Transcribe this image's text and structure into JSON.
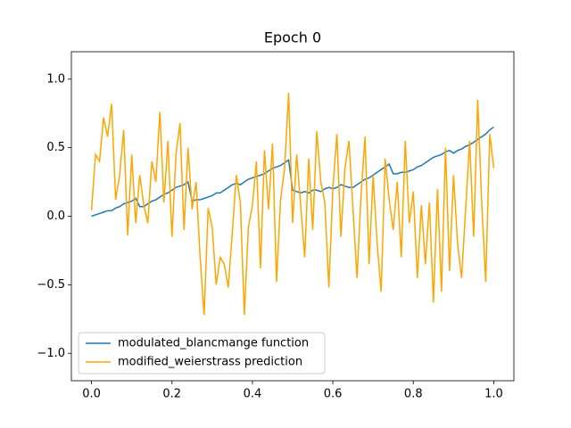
{
  "chart_data": {
    "type": "line",
    "title": "Epoch 0",
    "x": [
      0,
      0.01,
      0.02,
      0.03,
      0.04,
      0.05,
      0.06,
      0.07,
      0.08,
      0.09,
      0.1,
      0.11,
      0.12,
      0.13,
      0.14,
      0.15,
      0.16,
      0.17,
      0.18,
      0.19,
      0.2,
      0.21,
      0.22,
      0.23,
      0.24,
      0.25,
      0.26,
      0.27,
      0.28,
      0.29,
      0.3,
      0.31,
      0.32,
      0.33,
      0.34,
      0.35,
      0.36,
      0.37,
      0.38,
      0.39,
      0.4,
      0.41,
      0.42,
      0.43,
      0.44,
      0.45,
      0.46,
      0.47,
      0.48,
      0.49,
      0.5,
      0.51,
      0.52,
      0.53,
      0.54,
      0.55,
      0.56,
      0.57,
      0.58,
      0.59,
      0.6,
      0.61,
      0.62,
      0.63,
      0.64,
      0.65,
      0.66,
      0.67,
      0.68,
      0.69,
      0.7,
      0.71,
      0.72,
      0.73,
      0.74,
      0.75,
      0.76,
      0.77,
      0.78,
      0.79,
      0.8,
      0.81,
      0.82,
      0.83,
      0.84,
      0.85,
      0.86,
      0.87,
      0.88,
      0.89,
      0.9,
      0.91,
      0.92,
      0.93,
      0.94,
      0.95,
      0.96,
      0.97,
      0.98,
      0.99,
      1
    ],
    "series": [
      {
        "name": "modulated_blancmange function",
        "color": "#1f77b4",
        "values": [
          0,
          0.01,
          0.02,
          0.03,
          0.04,
          0.04,
          0.06,
          0.07,
          0.09,
          0.1,
          0.11,
          0.13,
          0.07,
          0.07,
          0.09,
          0.11,
          0.12,
          0.14,
          0.16,
          0.17,
          0.19,
          0.21,
          0.22,
          0.23,
          0.25,
          0.11,
          0.12,
          0.12,
          0.13,
          0.14,
          0.15,
          0.17,
          0.17,
          0.19,
          0.21,
          0.23,
          0.24,
          0.23,
          0.25,
          0.27,
          0.28,
          0.29,
          0.3,
          0.31,
          0.33,
          0.35,
          0.36,
          0.37,
          0.39,
          0.41,
          0.19,
          0.18,
          0.17,
          0.18,
          0.17,
          0.19,
          0.19,
          0.18,
          0.2,
          0.21,
          0.2,
          0.21,
          0.23,
          0.22,
          0.21,
          0.21,
          0.23,
          0.25,
          0.27,
          0.28,
          0.3,
          0.32,
          0.34,
          0.36,
          0.38,
          0.31,
          0.31,
          0.32,
          0.32,
          0.33,
          0.34,
          0.36,
          0.37,
          0.39,
          0.41,
          0.43,
          0.44,
          0.45,
          0.47,
          0.48,
          0.46,
          0.48,
          0.49,
          0.51,
          0.52,
          0.54,
          0.56,
          0.58,
          0.6,
          0.63,
          0.65
        ]
      },
      {
        "name": "modified_weierstrass prediction",
        "color": "#ffa500",
        "values": [
          0.04,
          0.45,
          0.4,
          0.72,
          0.58,
          0.82,
          0.12,
          0.3,
          0.63,
          -0.14,
          0.45,
          -0.05,
          0.3,
          0.08,
          -0.05,
          0.4,
          0.25,
          0.76,
          0.1,
          0.55,
          -0.15,
          0.45,
          0.68,
          -0.1,
          0.5,
          0.05,
          0.25,
          -0.3,
          -0.72,
          0.06,
          -0.08,
          -0.5,
          -0.3,
          -0.35,
          -0.52,
          -0.12,
          0.3,
          0.1,
          -0.72,
          -0.08,
          0.08,
          0.4,
          -0.38,
          0.48,
          0.05,
          0.53,
          -0.48,
          0.12,
          0.35,
          0.9,
          -0.05,
          0.45,
          0.08,
          -0.3,
          0.42,
          -0.1,
          0.62,
          0.25,
          0.1,
          -0.52,
          0.2,
          0.6,
          -0.15,
          0.35,
          0.55,
          0.05,
          -0.45,
          0.15,
          0.58,
          -0.35,
          0.3,
          -0.2,
          -0.55,
          0.42,
          0.12,
          -0.1,
          0.25,
          -0.3,
          0.55,
          -0.05,
          0.18,
          -0.45,
          0.08,
          -0.35,
          0.1,
          -0.63,
          0.2,
          -0.55,
          0.5,
          -0.4,
          0.3,
          -0.2,
          -0.45,
          0.05,
          0.55,
          -0.15,
          0.85,
          0.1,
          -0.48,
          0.6,
          0.35
        ]
      }
    ],
    "xlim": [
      -0.05,
      1.05
    ],
    "xticks": [
      {
        "value": 0,
        "label": "0.0"
      },
      0.2,
      0.4,
      0.6,
      0.8,
      {
        "value": 1,
        "label": "1.0"
      }
    ],
    "ylim": [
      -1.2,
      1.2
    ],
    "yticks": [
      {
        "value": -1,
        "label": "−1.0"
      },
      {
        "value": -0.5,
        "label": "−0.5"
      },
      {
        "value": 0,
        "label": "0.0"
      },
      0.5,
      {
        "value": 1,
        "label": "1.0"
      }
    ],
    "legend": "lower left",
    "grid": false
  }
}
